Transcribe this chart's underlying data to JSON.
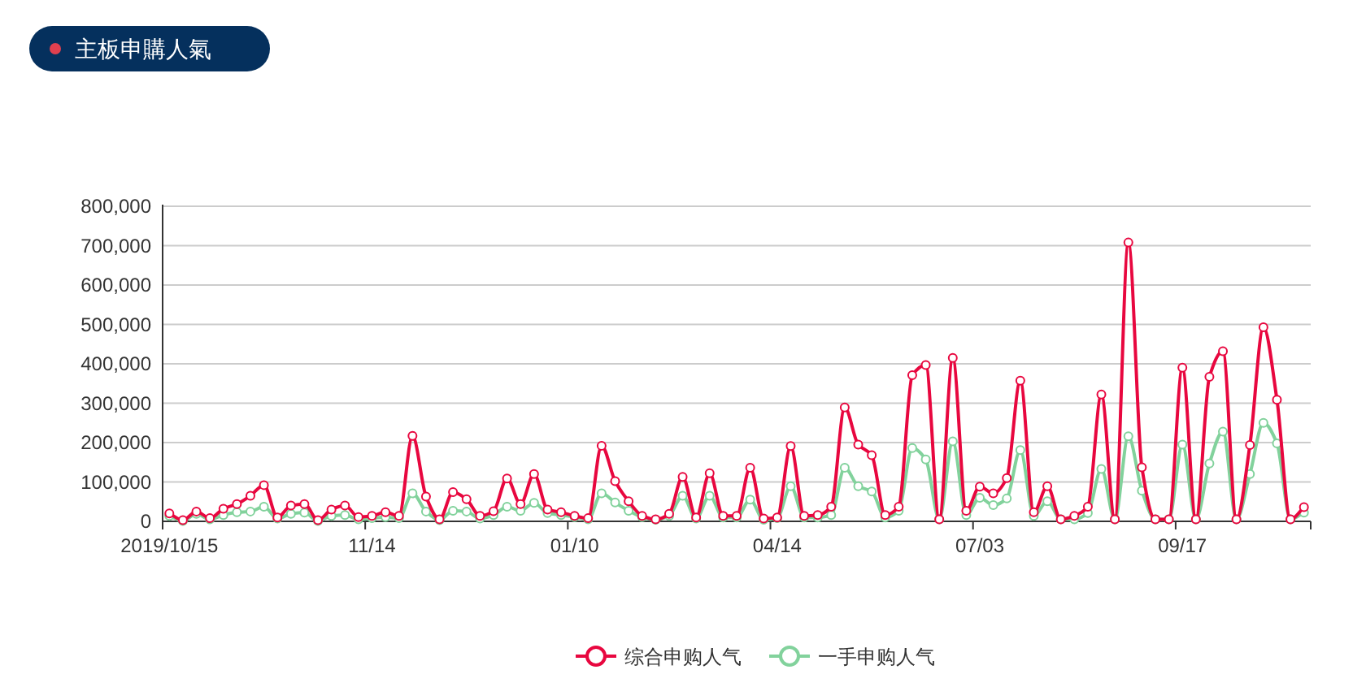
{
  "chart_data": {
    "type": "line",
    "title": "主板申購人氣",
    "categories": [
      "2019/10/15",
      null,
      null,
      null,
      null,
      null,
      null,
      null,
      null,
      null,
      null,
      null,
      null,
      null,
      null,
      "11/14",
      null,
      null,
      null,
      null,
      null,
      null,
      null,
      null,
      null,
      null,
      null,
      null,
      null,
      null,
      "01/10",
      null,
      null,
      null,
      null,
      null,
      null,
      null,
      null,
      null,
      null,
      null,
      null,
      null,
      null,
      "04/14",
      null,
      null,
      null,
      null,
      null,
      null,
      null,
      null,
      null,
      null,
      null,
      null,
      null,
      null,
      "07/03",
      null,
      null,
      null,
      null,
      null,
      null,
      null,
      null,
      null,
      null,
      null,
      null,
      null,
      null,
      "09/17",
      null,
      null,
      null,
      null,
      null,
      null,
      null,
      null,
      null
    ],
    "series": [
      {
        "name": "综合申购人气",
        "color": "#e8073f",
        "values": [
          20000,
          3000,
          25000,
          8000,
          32000,
          44000,
          65000,
          92000,
          10000,
          40000,
          44000,
          3000,
          30000,
          40000,
          11000,
          14000,
          23000,
          14000,
          217000,
          63000,
          5000,
          74000,
          56000,
          14000,
          26000,
          109000,
          44000,
          120000,
          30000,
          23000,
          14000,
          8000,
          192000,
          102000,
          51000,
          14000,
          5000,
          19000,
          113000,
          10000,
          122000,
          14000,
          14000,
          136000,
          7000,
          10000,
          191000,
          14000,
          16000,
          37000,
          289000,
          195000,
          168000,
          16000,
          37000,
          371000,
          397000,
          5000,
          415000,
          27000,
          88000,
          71000,
          110000,
          357000,
          23000,
          89000,
          5000,
          14000,
          37000,
          322000,
          5000,
          708000,
          137000,
          5000,
          5000,
          390000,
          5000,
          367000,
          432000,
          5000,
          194000,
          493000,
          309000,
          5000,
          36000
        ]
      },
      {
        "name": "一手申购人气",
        "color": "#82d29c",
        "values": [
          14000,
          1000,
          19000,
          5000,
          16000,
          23000,
          25000,
          37000,
          7000,
          19000,
          22000,
          1000,
          14000,
          16000,
          5000,
          8000,
          11000,
          8000,
          71000,
          25000,
          3000,
          27000,
          25000,
          7000,
          16000,
          37000,
          27000,
          47000,
          21000,
          16000,
          11000,
          5000,
          71000,
          48000,
          27000,
          11000,
          4000,
          14000,
          65000,
          7000,
          65000,
          10000,
          10000,
          55000,
          4000,
          8000,
          89000,
          10000,
          10000,
          16000,
          136000,
          89000,
          76000,
          10000,
          27000,
          186000,
          157000,
          5000,
          203000,
          16000,
          60000,
          41000,
          58000,
          181000,
          14000,
          51000,
          5000,
          5000,
          21000,
          133000,
          5000,
          216000,
          78000,
          5000,
          5000,
          195000,
          5000,
          147000,
          228000,
          5000,
          120000,
          250000,
          198000,
          5000,
          22000
        ]
      }
    ],
    "ylim": [
      0,
      800000
    ],
    "yticks": [
      {
        "value": 0,
        "label": "0"
      },
      {
        "value": 100000,
        "label": "100,000"
      },
      {
        "value": 200000,
        "label": "200,000"
      },
      {
        "value": 300000,
        "label": "300,000"
      },
      {
        "value": 400000,
        "label": "400,000"
      },
      {
        "value": 500000,
        "label": "500,000"
      },
      {
        "value": 600000,
        "label": "600,000"
      },
      {
        "value": 700000,
        "label": "700,000"
      },
      {
        "value": 800000,
        "label": "800,000"
      }
    ],
    "grid": "y",
    "legend": "bottom",
    "marker": "circle"
  }
}
